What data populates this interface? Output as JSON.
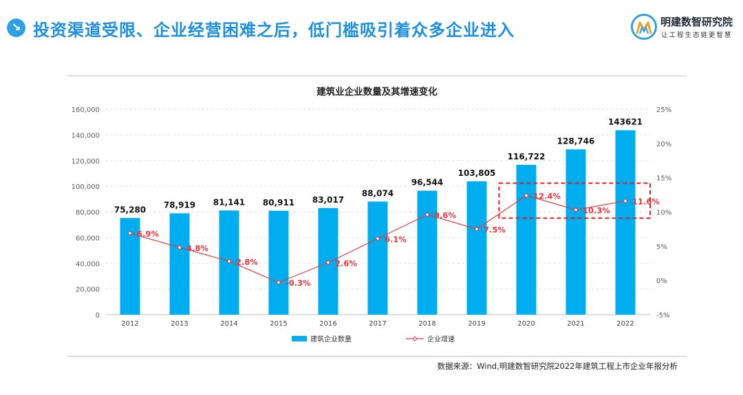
{
  "header": {
    "icon": "down-right-arrow-icon",
    "title": "投资渠道受限、企业经营困难之后，低门槛吸引着众多企业进入"
  },
  "logo": {
    "name": "明建数智研究院",
    "slogan": "让工程生态链更智慧",
    "icon": "institute-logo-icon"
  },
  "source": "数据来源：Wind,明建数智研究院2022年建筑工程上市企业年报分析",
  "colors": {
    "title_blue": "#1d8fdc",
    "bar": "#00aeef",
    "line": "#e8363d",
    "highlight_box": "#e11b22"
  },
  "chart_data": {
    "type": "bar",
    "title": "建筑业企业数量及其增速变化",
    "categories": [
      "2012",
      "2013",
      "2014",
      "2015",
      "2016",
      "2017",
      "2018",
      "2019",
      "2020",
      "2021",
      "2022"
    ],
    "series": [
      {
        "name": "建筑企业数量",
        "type": "bar",
        "axis": "left",
        "values": [
          75280,
          78919,
          81141,
          80911,
          83017,
          88074,
          96544,
          103805,
          116722,
          128746,
          143621
        ],
        "labels": [
          "75,280",
          "78,919",
          "81,141",
          "80,911",
          "83,017",
          "88,074",
          "96,544",
          "103,805",
          "116,722",
          "128,746",
          "143621"
        ]
      },
      {
        "name": "企业增速",
        "type": "line",
        "axis": "right",
        "values": [
          6.9,
          4.8,
          2.8,
          -0.3,
          2.6,
          6.1,
          9.6,
          7.5,
          12.4,
          10.3,
          11.6
        ],
        "labels": [
          "6.9%",
          "4.8%",
          "2.8%",
          "-0.3%",
          "2.6%",
          "6.1%",
          "9.6%",
          "7.5%",
          "12.4%",
          "10.3%",
          "11.6%"
        ]
      }
    ],
    "y_left": {
      "range": [
        0,
        160000
      ],
      "ticks": [
        "0",
        "20,000",
        "40,000",
        "60,000",
        "80,000",
        "100,000",
        "120,000",
        "140,000",
        "160,000"
      ]
    },
    "y_right": {
      "range": [
        -5,
        25
      ],
      "ticks": [
        "-5%",
        "0%",
        "5%",
        "10%",
        "15%",
        "20%",
        "25%"
      ]
    },
    "grid": true,
    "legend_position": "bottom",
    "highlight": {
      "categories": [
        "2020",
        "2021",
        "2022"
      ],
      "style": "dashed-red-box"
    }
  }
}
